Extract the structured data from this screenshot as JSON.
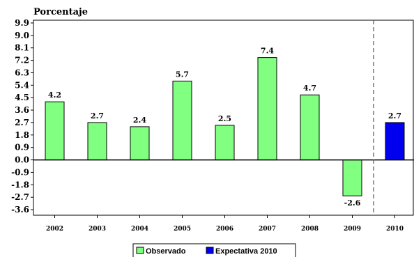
{
  "chart_data": {
    "type": "bar",
    "ylabel": "Porcentaje",
    "categories": [
      "2002",
      "2003",
      "2004",
      "2005",
      "2006",
      "2007",
      "2008",
      "2009",
      "2010"
    ],
    "series": [
      {
        "name": "Observado",
        "color": "#80ff80",
        "values": [
          4.2,
          2.7,
          2.4,
          5.7,
          2.5,
          7.4,
          4.7,
          -2.6,
          null
        ]
      },
      {
        "name": "Expectativa 2010",
        "color": "#0000ee",
        "values": [
          null,
          null,
          null,
          null,
          null,
          null,
          null,
          null,
          2.7
        ]
      }
    ],
    "data_labels": [
      "4.2",
      "2.7",
      "2.4",
      "5.7",
      "2.5",
      "7.4",
      "4.7",
      "-2.6",
      "2.7"
    ],
    "yticks": [
      "9.9",
      "9.0",
      "8.1",
      "7.2",
      "6.3",
      "5.4",
      "4.5",
      "3.6",
      "2.7",
      "1.8",
      "0.9",
      "0.0",
      "-0.9",
      "-1.8",
      "-2.7",
      "-3.6"
    ],
    "ylim": [
      -4.0,
      10.1
    ],
    "divider_after_category": "2009",
    "grid": false,
    "legend_position": "bottom"
  }
}
